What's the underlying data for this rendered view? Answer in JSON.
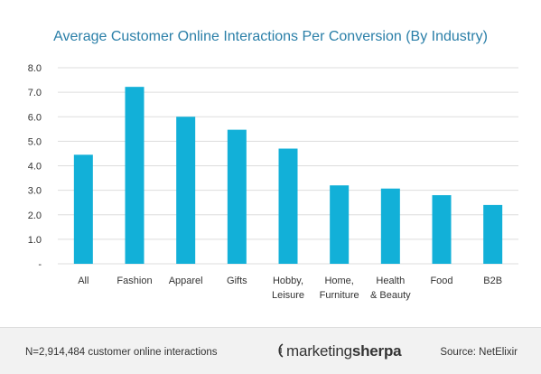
{
  "chart_data": {
    "type": "bar",
    "title": "Average Customer Online Interactions Per Conversion (By Industry)",
    "categories": [
      [
        "All"
      ],
      [
        "Fashion"
      ],
      [
        "Apparel"
      ],
      [
        "Gifts"
      ],
      [
        "Hobby,",
        "Leisure"
      ],
      [
        "Home,",
        "Furniture"
      ],
      [
        "Health",
        "& Beauty"
      ],
      [
        "Food"
      ],
      [
        "B2B"
      ]
    ],
    "values": [
      4.45,
      7.22,
      6.0,
      5.47,
      4.7,
      3.2,
      3.07,
      2.8,
      2.4
    ],
    "yticks": [
      "-",
      "1.0",
      "2.0",
      "3.0",
      "4.0",
      "5.0",
      "6.0",
      "7.0",
      "8.0"
    ],
    "ylim": [
      0,
      8
    ],
    "xlabel": "",
    "ylabel": "",
    "grid": true,
    "bar_color": "#12b0d8",
    "grid_color": "#dddddd"
  },
  "footer": {
    "note": "N=2,914,484 customer online interactions",
    "logo_part1": "marketing",
    "logo_part2": "sherpa",
    "source": "Source: NetElixir"
  }
}
